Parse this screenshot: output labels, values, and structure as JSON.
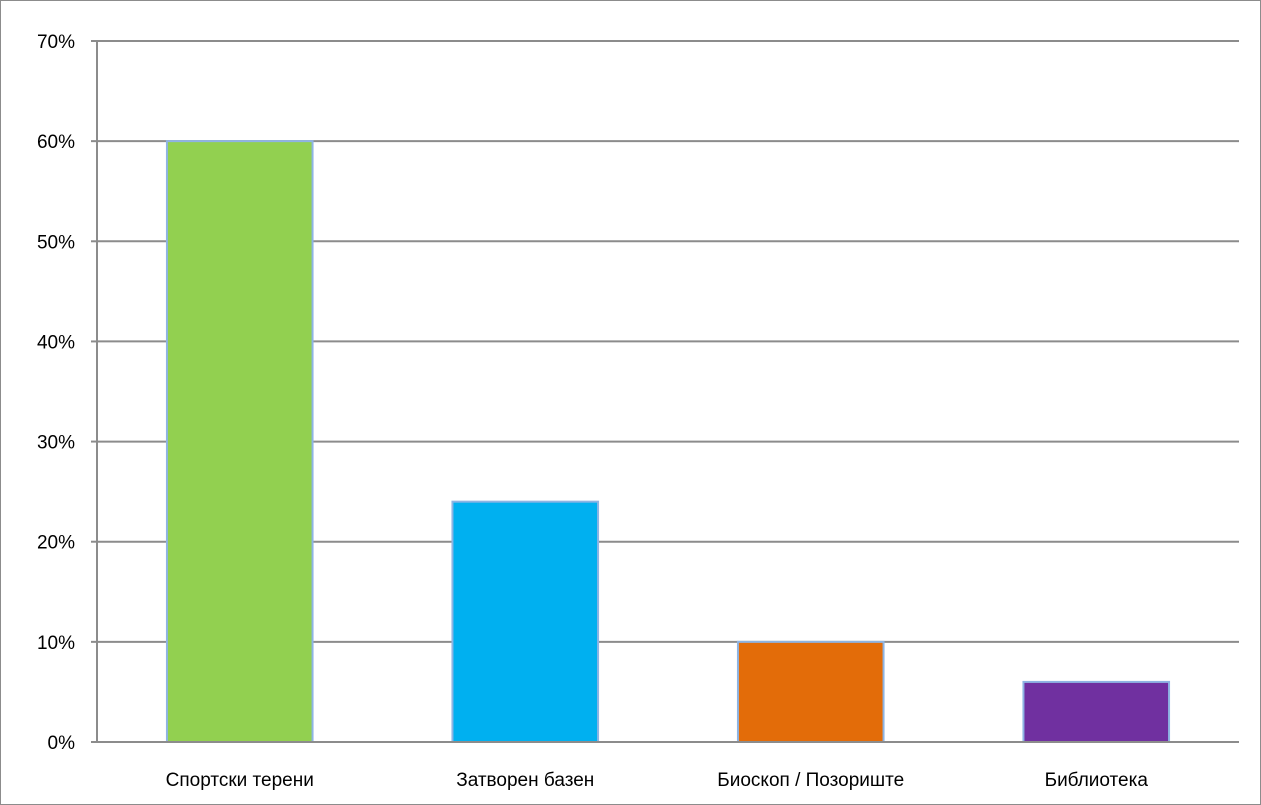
{
  "chart_data": {
    "type": "bar",
    "categories": [
      "Спортски терени",
      "Затворен базен",
      "Биоскоп / Позориште",
      "Библиотека"
    ],
    "values": [
      60,
      24,
      10,
      6
    ],
    "colors": [
      "#92d050",
      "#00b0f0",
      "#e36c09",
      "#7030a0"
    ],
    "bar_edge_color": "#8eb4e3",
    "ylim": [
      0,
      70
    ],
    "yticks": [
      0,
      10,
      20,
      30,
      40,
      50,
      60,
      70
    ],
    "ytick_labels": [
      "0%",
      "10%",
      "20%",
      "30%",
      "40%",
      "50%",
      "60%",
      "70%"
    ],
    "grid": true,
    "legend": "none",
    "title": "",
    "xlabel": "",
    "ylabel": ""
  }
}
